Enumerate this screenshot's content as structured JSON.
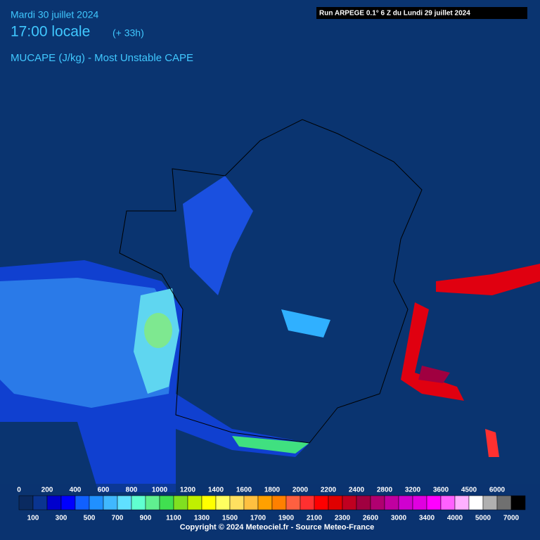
{
  "header": {
    "date": "Mardi 30 juillet 2024",
    "time": "17:00 locale",
    "offset": "(+ 33h)",
    "field": "MUCAPE (J/kg) - Most Unstable CAPE",
    "run": "Run ARPEGE 0.1° 6 Z du Lundi 29 juillet 2024"
  },
  "legend": {
    "top_labels": [
      "0",
      "200",
      "400",
      "600",
      "800",
      "1000",
      "1200",
      "1400",
      "1600",
      "1800",
      "2000",
      "2200",
      "2400",
      "2800",
      "3200",
      "3600",
      "4500",
      "6000"
    ],
    "bottom_labels": [
      "100",
      "300",
      "500",
      "700",
      "900",
      "1100",
      "1300",
      "1500",
      "1700",
      "1900",
      "2100",
      "2300",
      "2600",
      "3000",
      "3400",
      "4000",
      "5000",
      "7000"
    ],
    "colors": [
      "#0a2a60",
      "#0a3490",
      "#0000cc",
      "#0000ff",
      "#1060ff",
      "#2090ff",
      "#40b8ff",
      "#60e0ff",
      "#60ffd0",
      "#60f090",
      "#40e050",
      "#80e020",
      "#c0f000",
      "#ffff00",
      "#ffff60",
      "#ffe060",
      "#ffc040",
      "#ffa000",
      "#ff8000",
      "#ff6040",
      "#ff3030",
      "#ff0000",
      "#e00000",
      "#c00020",
      "#a00040",
      "#b00070",
      "#c000a0",
      "#d000d0",
      "#e000e0",
      "#ff00ff",
      "#ff60ff",
      "#ffb0ff",
      "#ffffff",
      "#b0b0b0",
      "#707070",
      "#000000"
    ]
  },
  "footer": "Copyright © 2024 Meteociel.fr - Source Meteo-France"
}
